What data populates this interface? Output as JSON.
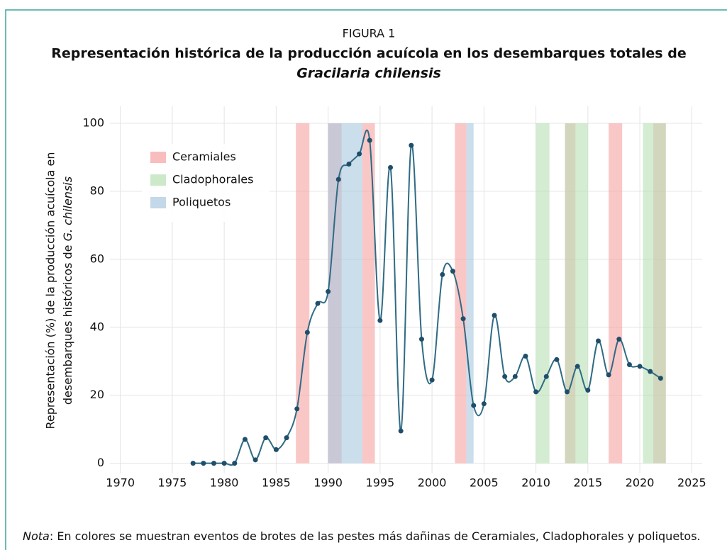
{
  "chart_data": {
    "type": "line",
    "figure_label": "FIGURA 1",
    "title": "Representación histórica de la producción acuícola en los desembarques totales de",
    "title_italic": "Gracilaria chilensis",
    "y_label": {
      "line1": "Representación (%) de la producción acuícola en",
      "line2": "desembarques históricos de",
      "line2_italic": "G. chilensis"
    },
    "x": [
      1977,
      1978,
      1979,
      1980,
      1981,
      1982,
      1983,
      1984,
      1985,
      1986,
      1987,
      1988,
      1989,
      1990,
      1991,
      1992,
      1993,
      1994,
      1995,
      1996,
      1997,
      1998,
      1999,
      2000,
      2001,
      2002,
      2003,
      2004,
      2005,
      2006,
      2007,
      2008,
      2009,
      2010,
      2011,
      2012,
      2013,
      2014,
      2015,
      2016,
      2017,
      2018,
      2019,
      2020,
      2021,
      2022
    ],
    "series": [
      {
        "color": "#2f6b84",
        "values": [
          0,
          0,
          0,
          0,
          0,
          7,
          1,
          7.5,
          4,
          7.5,
          16,
          38.5,
          47,
          50.5,
          83.5,
          88,
          91,
          95,
          42,
          87,
          9.5,
          93.5,
          36.5,
          24.5,
          55.5,
          56.5,
          42.5,
          17,
          17.5,
          43.5,
          25.5,
          25.5,
          31.5,
          21,
          25.5,
          30.5,
          21,
          28.5,
          21.5,
          36,
          26,
          36.5,
          29,
          28.5,
          27,
          25
        ]
      }
    ],
    "bands": [
      {
        "name": "Ceramiales",
        "color": "#f7a1a1",
        "spans": [
          [
            1986.9,
            1988.2
          ],
          [
            1990,
            1991.3
          ],
          [
            1993.3,
            1994.5
          ],
          [
            2002.2,
            2003.3
          ],
          [
            2012.8,
            2013.8
          ],
          [
            2017,
            2018.3
          ],
          [
            2021.3,
            2022.5
          ]
        ]
      },
      {
        "name": "Cladophorales",
        "color": "#b7dfb4",
        "spans": [
          [
            2010,
            2011.3
          ],
          [
            2012.8,
            2015
          ],
          [
            2020.3,
            2022.5
          ]
        ]
      },
      {
        "name": "Poliquetos",
        "color": "#a9c8e0",
        "spans": [
          [
            1990,
            1993.3
          ],
          [
            2003.3,
            2004
          ]
        ]
      }
    ],
    "xlim": [
      1969,
      2026
    ],
    "xticks": [
      1970,
      1975,
      1980,
      1985,
      1990,
      1995,
      2000,
      2005,
      2010,
      2015,
      2020,
      2025
    ],
    "ylim": [
      -3,
      105
    ],
    "yticks": [
      0,
      20,
      40,
      60,
      80,
      100
    ],
    "grid": true,
    "legend": "upper left",
    "note": {
      "label": "Nota",
      "text": ": En colores se muestran eventos de brotes de las pestes más dañinas de Ceramiales, Cladophorales y poliquetos."
    }
  }
}
